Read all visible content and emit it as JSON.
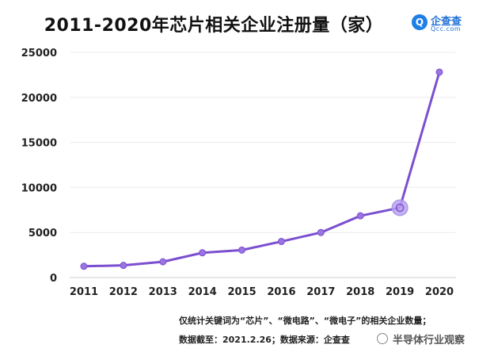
{
  "brand": {
    "name": "企查查",
    "sub": "Qcc.com",
    "icon_glyph": "Q",
    "color": "#1f7fe6"
  },
  "note": "仅统计关键词为“芯片”、“微电路”、“微电子”的相关企业数量；",
  "source": "数据截至：2021.2.26；数据来源：企查查",
  "watermark": {
    "text": "半导体行业观察"
  },
  "chart_data": {
    "type": "line",
    "title": "2011-2020年芯片相关企业注册量（家）",
    "xlabel": "",
    "ylabel": "",
    "x": [
      "2011",
      "2012",
      "2013",
      "2014",
      "2015",
      "2016",
      "2017",
      "2018",
      "2019",
      "2020"
    ],
    "series": [
      {
        "values": [
          1250,
          1350,
          1750,
          2750,
          3050,
          4000,
          5000,
          6850,
          7750,
          22800
        ]
      }
    ],
    "ylim": [
      0,
      25000
    ],
    "yticks": [
      "0",
      "5000",
      "10000",
      "15000",
      "20000",
      "25000"
    ],
    "grid": true,
    "highlight_index": 8,
    "line_color": "#7b4fd0",
    "marker_color": "#9a74e0",
    "highlight_color": "#b9a2ef"
  }
}
